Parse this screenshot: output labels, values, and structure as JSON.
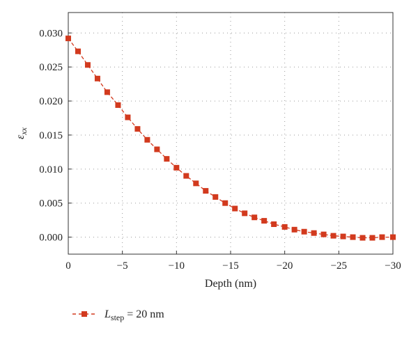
{
  "chart_data": {
    "type": "line",
    "xlabel": "Depth (nm)",
    "ylabel_main": "ε",
    "ylabel_sub": "xx",
    "xlim": [
      0,
      -30
    ],
    "ylim": [
      -0.0025,
      0.033
    ],
    "xticks": [
      0,
      -5,
      -10,
      -15,
      -20,
      -25,
      -30
    ],
    "xtick_labels": [
      "0",
      "−5",
      "−10",
      "−15",
      "−20",
      "−25",
      "−30"
    ],
    "yticks": [
      0.0,
      0.005,
      0.01,
      0.015,
      0.02,
      0.025,
      0.03
    ],
    "ytick_labels": [
      "0.000",
      "0.005",
      "0.010",
      "0.015",
      "0.020",
      "0.025",
      "0.030"
    ],
    "grid": true,
    "legend_placement": "bottom-left",
    "series": [
      {
        "name_main": "L",
        "name_sub": "step",
        "name_rest": " = 20 nm",
        "color": "#d23a1e",
        "marker": "square",
        "line_style": "dashed",
        "x": [
          0,
          -0.9,
          -1.8,
          -2.7,
          -3.6,
          -4.6,
          -5.5,
          -6.4,
          -7.3,
          -8.2,
          -9.1,
          -10.0,
          -10.9,
          -11.8,
          -12.7,
          -13.6,
          -14.5,
          -15.4,
          -16.3,
          -17.2,
          -18.1,
          -19.0,
          -20.0,
          -20.9,
          -21.8,
          -22.7,
          -23.6,
          -24.5,
          -25.4,
          -26.3,
          -27.2,
          -28.1,
          -29.0,
          -30.0
        ],
        "y": [
          0.0292,
          0.0273,
          0.0253,
          0.0233,
          0.0213,
          0.0194,
          0.0176,
          0.0159,
          0.0143,
          0.0129,
          0.0115,
          0.0102,
          0.009,
          0.0079,
          0.0068,
          0.0059,
          0.005,
          0.0042,
          0.0035,
          0.0029,
          0.0024,
          0.0019,
          0.0015,
          0.0011,
          0.0008,
          0.0006,
          0.0004,
          0.0002,
          0.0001,
          0.0,
          -0.0001,
          -0.0001,
          0.0,
          0.0
        ]
      }
    ]
  }
}
